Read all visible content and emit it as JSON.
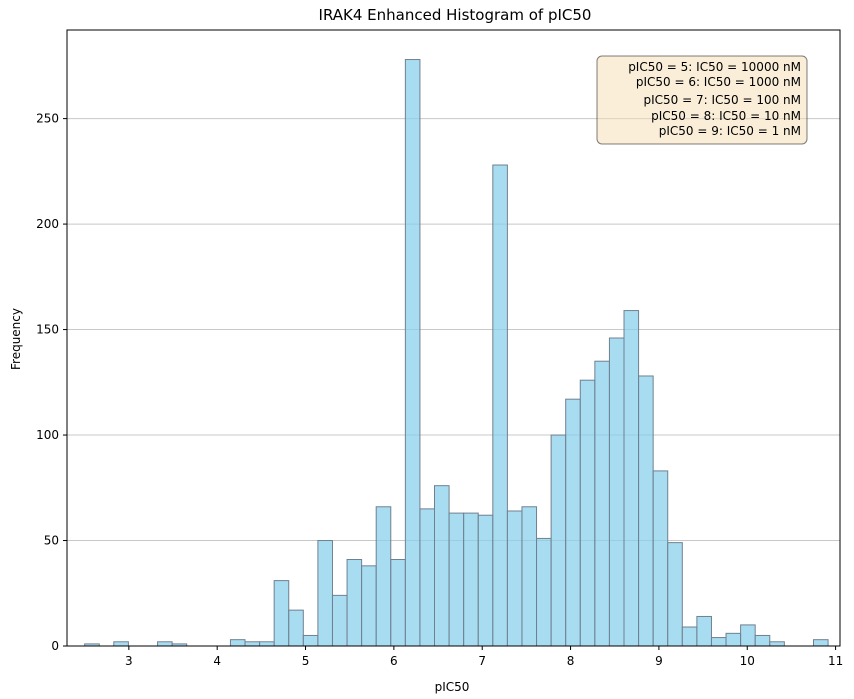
{
  "chart_data": {
    "type": "bar",
    "title": "IRAK4 Enhanced Histogram of pIC50",
    "xlabel": "pIC50",
    "ylabel": "Frequency",
    "xlim": [
      2.3,
      11.05
    ],
    "ylim": [
      0,
      292
    ],
    "xticks": [
      3,
      4,
      5,
      6,
      7,
      8,
      9,
      10,
      11
    ],
    "yticks": [
      0,
      50,
      100,
      150,
      200,
      250
    ],
    "grid": "horizontal",
    "bar_color": "#87CEEB",
    "edge_color": "#708090",
    "bin_width": 0.165,
    "bin_start": 2.5,
    "values": [
      1,
      0,
      2,
      0,
      0,
      2,
      1,
      0,
      0,
      0,
      3,
      2,
      2,
      31,
      17,
      5,
      50,
      24,
      41,
      38,
      66,
      41,
      278,
      65,
      76,
      63,
      63,
      62,
      228,
      64,
      66,
      51,
      100,
      117,
      126,
      135,
      146,
      159,
      128,
      83,
      49,
      9,
      14,
      4,
      6,
      10,
      5,
      2,
      0,
      0,
      3
    ],
    "annotation_lines": [
      "pIC50 = 5: IC50 = 10000 nM",
      "pIC50 = 6: IC50 = 1000 nM",
      "pIC50 = 7: IC50 = 100 nM",
      "pIC50 = 8: IC50 = 10 nM",
      "pIC50 = 9: IC50 = 1 nM"
    ],
    "annotation_placement": "top-right"
  }
}
